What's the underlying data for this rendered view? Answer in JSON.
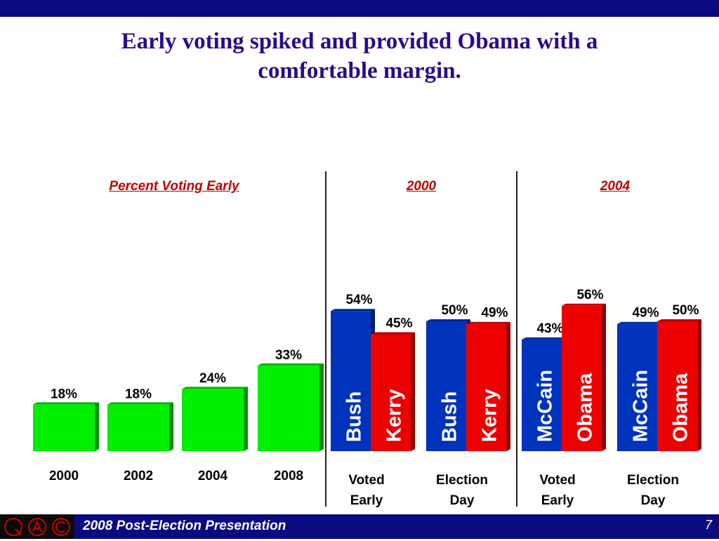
{
  "slide": {
    "title": "Early voting spiked and provided Obama with a comfortable margin.",
    "footer_text": "2008 Post-Election Presentation",
    "page_number": "7"
  },
  "sections": {
    "percent_voting_early": "Percent Voting Early",
    "y2000": "2000",
    "y2004": "2004"
  },
  "logo_icons": [
    "q-circle-logo-icon",
    "a-circle-logo-icon",
    "c-circle-logo-icon"
  ],
  "colors": {
    "green": "#00ee00",
    "blue": "#0033bb",
    "red": "#ee0000",
    "navy": "#0a0a80",
    "title": "#2a0a8c",
    "section_label": "#c00000"
  },
  "chart_data": [
    {
      "type": "bar",
      "title": "Percent Voting Early",
      "categories": [
        "2000",
        "2002",
        "2004",
        "2008"
      ],
      "values": [
        18,
        18,
        24,
        33
      ],
      "value_labels": [
        "18%",
        "18%",
        "24%",
        "33%"
      ],
      "color": "#00ee00"
    },
    {
      "type": "bar",
      "title": "2000",
      "groups": [
        {
          "category": "Voted Early",
          "bars": [
            {
              "name": "Bush",
              "value": 54,
              "value_label": "54%",
              "color": "#0033bb"
            },
            {
              "name": "Kerry",
              "value": 45,
              "value_label": "45%",
              "color": "#ee0000"
            }
          ]
        },
        {
          "category": "Election Day",
          "bars": [
            {
              "name": "Bush",
              "value": 50,
              "value_label": "50%",
              "color": "#0033bb"
            },
            {
              "name": "Kerry",
              "value": 49,
              "value_label": "49%",
              "color": "#ee0000"
            }
          ]
        }
      ]
    },
    {
      "type": "bar",
      "title": "2004",
      "groups": [
        {
          "category": "Voted Early",
          "bars": [
            {
              "name": "McCain",
              "value": 43,
              "value_label": "43%",
              "color": "#0033bb"
            },
            {
              "name": "Obama",
              "value": 56,
              "value_label": "56%",
              "color": "#ee0000"
            }
          ]
        },
        {
          "category": "Election Day",
          "bars": [
            {
              "name": "McCain",
              "value": 49,
              "value_label": "49%",
              "color": "#0033bb"
            },
            {
              "name": "Obama",
              "value": 50,
              "value_label": "50%",
              "color": "#ee0000"
            }
          ]
        }
      ]
    }
  ]
}
